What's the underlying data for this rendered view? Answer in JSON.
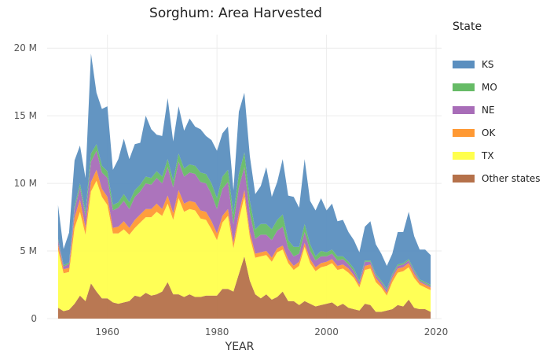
{
  "chart_data": {
    "type": "area",
    "stacked": true,
    "title": "Sorghum: Area Harvested",
    "xlabel": "YEAR",
    "ylabel": "",
    "xlim": [
      1949,
      2021
    ],
    "ylim": [
      0,
      21000000
    ],
    "xticks": [
      1960,
      1980,
      2000,
      2020
    ],
    "xtick_labels": [
      "1960",
      "1980",
      "2000",
      "2020"
    ],
    "yticks": [
      0,
      5000000,
      10000000,
      15000000,
      20000000
    ],
    "ytick_labels": [
      "0",
      "5 M",
      "10 M",
      "15 M",
      "20 M"
    ],
    "grid": true,
    "legend_title": "State",
    "legend_position": "right",
    "x": [
      1951,
      1952,
      1953,
      1954,
      1955,
      1956,
      1957,
      1958,
      1959,
      1960,
      1961,
      1962,
      1963,
      1964,
      1965,
      1966,
      1967,
      1968,
      1969,
      1970,
      1971,
      1972,
      1973,
      1974,
      1975,
      1976,
      1977,
      1978,
      1979,
      1980,
      1981,
      1982,
      1983,
      1984,
      1985,
      1986,
      1987,
      1988,
      1989,
      1990,
      1991,
      1992,
      1993,
      1994,
      1995,
      1996,
      1997,
      1998,
      1999,
      2000,
      2001,
      2002,
      2003,
      2004,
      2005,
      2006,
      2007,
      2008,
      2009,
      2010,
      2011,
      2012,
      2013,
      2014,
      2015,
      2016,
      2017,
      2018,
      2019
    ],
    "series": [
      {
        "name": "Other states",
        "color": "#b5714a",
        "values": [
          0.8,
          0.55,
          0.65,
          1.1,
          1.7,
          1.3,
          2.6,
          2.0,
          1.5,
          1.5,
          1.2,
          1.1,
          1.2,
          1.3,
          1.7,
          1.6,
          1.9,
          1.7,
          1.8,
          2.0,
          2.7,
          1.8,
          1.8,
          1.6,
          1.8,
          1.6,
          1.6,
          1.7,
          1.7,
          1.7,
          2.2,
          2.2,
          2.0,
          3.3,
          4.6,
          2.8,
          1.8,
          1.5,
          1.8,
          1.4,
          1.6,
          2.0,
          1.3,
          1.3,
          1.0,
          1.3,
          1.1,
          0.9,
          1.0,
          1.1,
          1.2,
          0.9,
          1.1,
          0.8,
          0.7,
          0.6,
          1.1,
          1.0,
          0.5,
          0.5,
          0.6,
          0.7,
          1.0,
          0.9,
          1.4,
          0.8,
          0.7,
          0.7,
          0.5
        ]
      },
      {
        "name": "TX",
        "color": "#ffff4d",
        "values": [
          4.3,
          2.8,
          2.8,
          5.6,
          6.2,
          4.9,
          6.8,
          8.2,
          7.5,
          6.9,
          5.1,
          5.2,
          5.4,
          4.9,
          5.0,
          5.5,
          5.6,
          5.8,
          6.1,
          5.6,
          5.8,
          5.5,
          7.1,
          6.3,
          6.3,
          6.4,
          5.8,
          5.6,
          4.9,
          4.1,
          4.9,
          5.4,
          3.2,
          4.0,
          4.4,
          3.2,
          2.7,
          3.1,
          2.9,
          2.8,
          3.3,
          3.1,
          2.8,
          2.3,
          2.9,
          4.0,
          3.0,
          2.6,
          2.8,
          2.8,
          2.9,
          2.7,
          2.6,
          2.6,
          2.3,
          1.7,
          2.5,
          2.7,
          2.2,
          1.8,
          1.1,
          2.0,
          2.4,
          2.6,
          2.4,
          2.2,
          1.8,
          1.6,
          1.6
        ]
      },
      {
        "name": "OK",
        "color": "#ff9933",
        "values": [
          0.4,
          0.3,
          0.3,
          0.8,
          0.9,
          0.5,
          0.7,
          0.8,
          0.6,
          0.6,
          0.4,
          0.5,
          0.6,
          0.5,
          0.6,
          0.6,
          0.6,
          0.6,
          0.6,
          0.5,
          0.6,
          0.5,
          0.6,
          0.6,
          0.6,
          0.6,
          0.6,
          0.6,
          0.6,
          0.5,
          0.5,
          0.5,
          0.4,
          0.5,
          0.5,
          0.4,
          0.3,
          0.3,
          0.3,
          0.3,
          0.3,
          0.3,
          0.3,
          0.3,
          0.3,
          0.3,
          0.3,
          0.3,
          0.3,
          0.3,
          0.3,
          0.3,
          0.3,
          0.3,
          0.2,
          0.2,
          0.3,
          0.3,
          0.3,
          0.2,
          0.2,
          0.3,
          0.3,
          0.3,
          0.3,
          0.3,
          0.2,
          0.2,
          0.2
        ]
      },
      {
        "name": "NE",
        "color": "#a86db8",
        "values": [
          0.3,
          0.2,
          0.3,
          0.6,
          0.9,
          0.9,
          1.5,
          1.4,
          1.2,
          1.4,
          1.3,
          1.4,
          1.5,
          1.4,
          1.7,
          1.7,
          1.9,
          1.8,
          1.9,
          1.9,
          2.1,
          1.9,
          2.1,
          2.0,
          2.1,
          2.1,
          2.1,
          2.1,
          2.0,
          1.8,
          2.0,
          2.0,
          1.4,
          1.9,
          1.7,
          1.4,
          1.1,
          1.3,
          1.2,
          1.3,
          1.3,
          1.4,
          0.8,
          0.7,
          0.6,
          0.8,
          0.6,
          0.5,
          0.5,
          0.4,
          0.4,
          0.4,
          0.4,
          0.3,
          0.3,
          0.2,
          0.3,
          0.2,
          0.2,
          0.2,
          0.2,
          0.2,
          0.2,
          0.2,
          0.2,
          0.2,
          0.1,
          0.1,
          0.1
        ]
      },
      {
        "name": "MO",
        "color": "#66bb66",
        "values": [
          0.1,
          0.1,
          0.1,
          0.2,
          0.3,
          0.3,
          0.6,
          0.5,
          0.5,
          0.5,
          0.4,
          0.4,
          0.5,
          0.5,
          0.5,
          0.5,
          0.5,
          0.5,
          0.5,
          0.5,
          0.6,
          0.5,
          0.6,
          0.6,
          0.6,
          0.6,
          0.7,
          0.7,
          0.8,
          0.8,
          0.9,
          0.9,
          0.7,
          1.0,
          1.1,
          0.9,
          0.7,
          0.8,
          0.8,
          0.8,
          0.8,
          0.9,
          0.6,
          0.7,
          0.5,
          0.6,
          0.5,
          0.3,
          0.4,
          0.3,
          0.3,
          0.3,
          0.2,
          0.2,
          0.2,
          0.1,
          0.1,
          0.1,
          0.1,
          0.1,
          0.1,
          0.1,
          0.1,
          0.1,
          0.1,
          0.1,
          0.1,
          0.1,
          0.1
        ]
      },
      {
        "name": "KS",
        "color": "#5b8fbf",
        "values": [
          2.5,
          1.2,
          2.2,
          3.4,
          2.8,
          2.5,
          7.4,
          3.8,
          4.2,
          4.8,
          2.6,
          3.2,
          4.1,
          3.2,
          3.4,
          3.1,
          4.5,
          3.6,
          2.7,
          3.0,
          4.5,
          2.9,
          3.5,
          2.8,
          3.4,
          2.9,
          3.2,
          2.8,
          3.2,
          3.5,
          3.2,
          3.2,
          1.8,
          4.6,
          4.4,
          3.3,
          2.6,
          2.8,
          4.2,
          2.4,
          2.8,
          4.1,
          3.3,
          3.7,
          2.9,
          4.8,
          3.2,
          3.4,
          3.9,
          3.1,
          3.4,
          2.6,
          2.7,
          2.2,
          2.1,
          2.1,
          2.5,
          2.9,
          2.2,
          2.0,
          1.7,
          1.5,
          2.4,
          2.3,
          3.5,
          2.5,
          2.2,
          2.4,
          2.2
        ]
      }
    ]
  }
}
